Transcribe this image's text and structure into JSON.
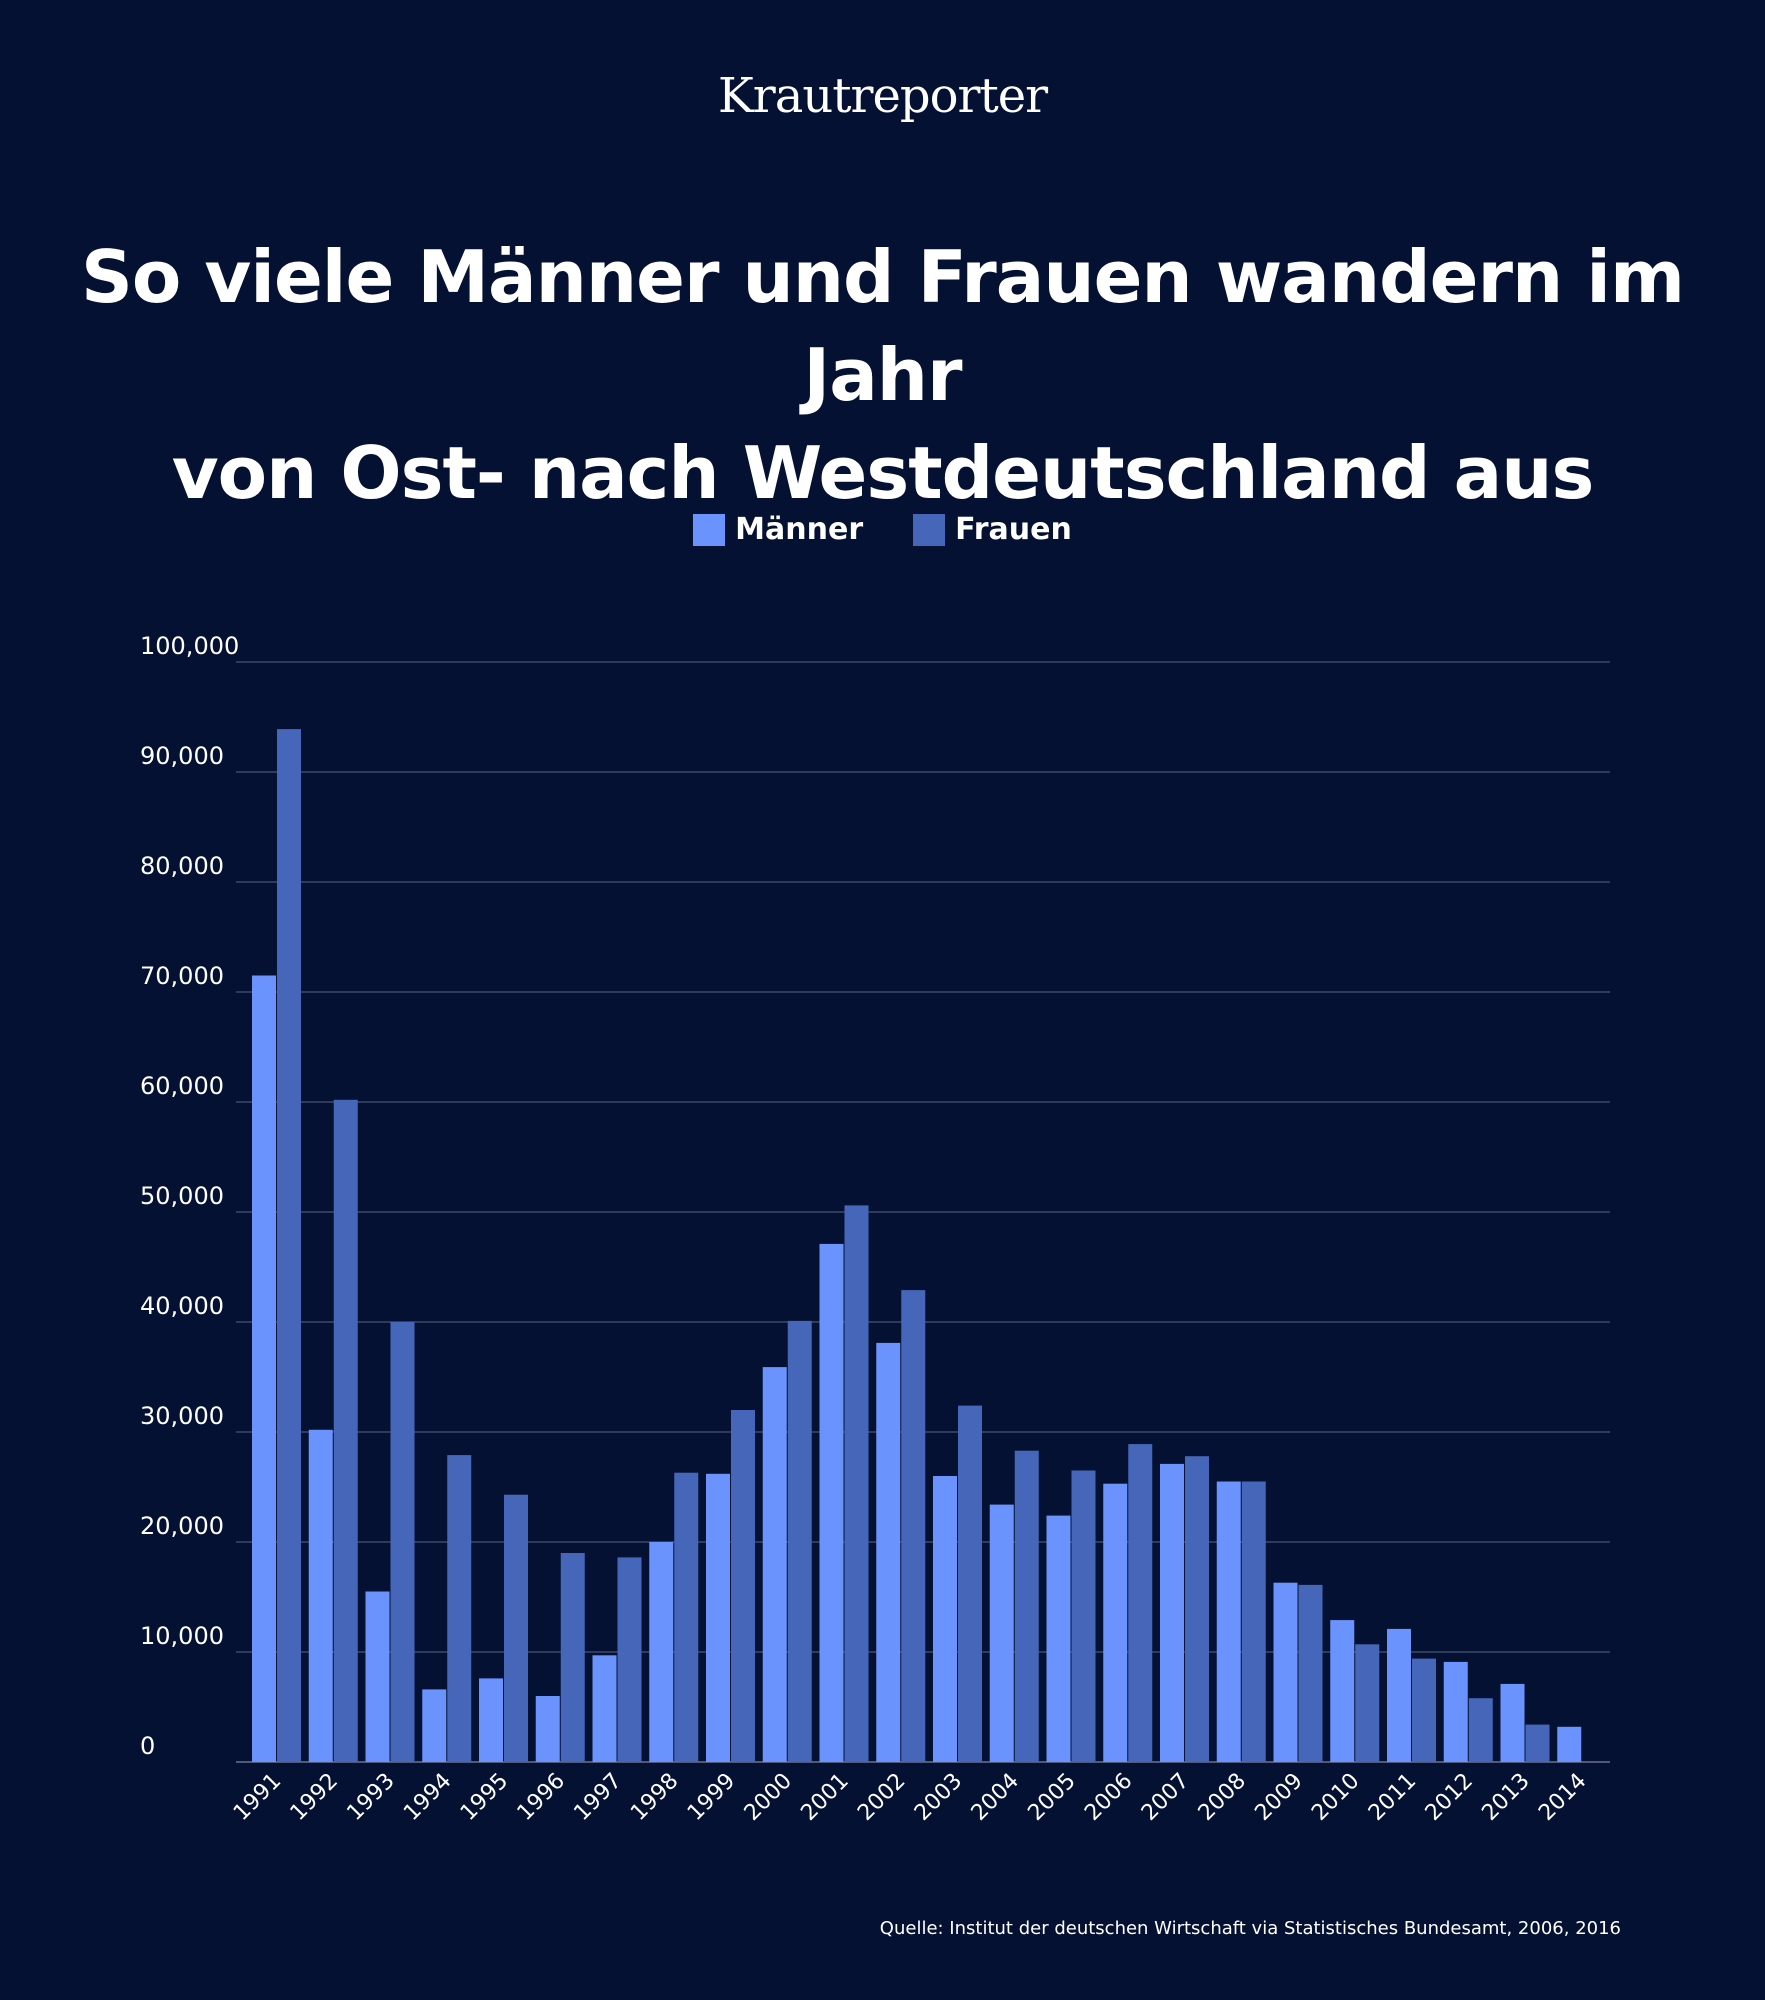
{
  "brand": "Krautreporter",
  "source": "Quelle: Institut der deutschen Wirtschaft via Statistisches Bundesamt, 2006, 2016",
  "chart_data": {
    "type": "bar",
    "title": "So viele Männer und Frauen wandern im Jahr von Ost- nach Westdeutschland aus",
    "title_lines": [
      "So viele Männer und Frauen wandern im Jahr",
      "von Ost- nach Westdeutschland aus"
    ],
    "xlabel": "",
    "ylabel": "",
    "ylim": [
      0,
      100000
    ],
    "yticks": [
      0,
      10000,
      20000,
      30000,
      40000,
      50000,
      60000,
      70000,
      80000,
      90000,
      100000
    ],
    "ytick_labels": [
      "0",
      "10,000",
      "20,000",
      "30,000",
      "40,000",
      "50,000",
      "60,000",
      "70,000",
      "80,000",
      "90,000",
      "100,000"
    ],
    "grid": true,
    "legend_position": "top-center",
    "categories": [
      "1991",
      "1992",
      "1993",
      "1994",
      "1995",
      "1996",
      "1997",
      "1998",
      "1999",
      "2000",
      "2001",
      "2002",
      "2003",
      "2004",
      "2005",
      "2006",
      "2007",
      "2008",
      "2009",
      "2010",
      "2011",
      "2012",
      "2013",
      "2014"
    ],
    "series": [
      {
        "name": "Männer",
        "color": "#6a93fd",
        "values": [
          71500,
          30200,
          15500,
          6600,
          7600,
          6000,
          9700,
          20000,
          26200,
          35900,
          47100,
          38100,
          26000,
          23400,
          22400,
          25300,
          27100,
          25500,
          16300,
          12900,
          12100,
          9100,
          7100,
          3200
        ]
      },
      {
        "name": "Frauen",
        "color": "#4566b9",
        "values": [
          93900,
          60200,
          40000,
          27900,
          24300,
          19000,
          18600,
          26300,
          32000,
          40100,
          50600,
          42900,
          32400,
          28300,
          26500,
          28900,
          27800,
          25500,
          16100,
          10700,
          9400,
          5800,
          3400,
          0
        ]
      }
    ]
  }
}
